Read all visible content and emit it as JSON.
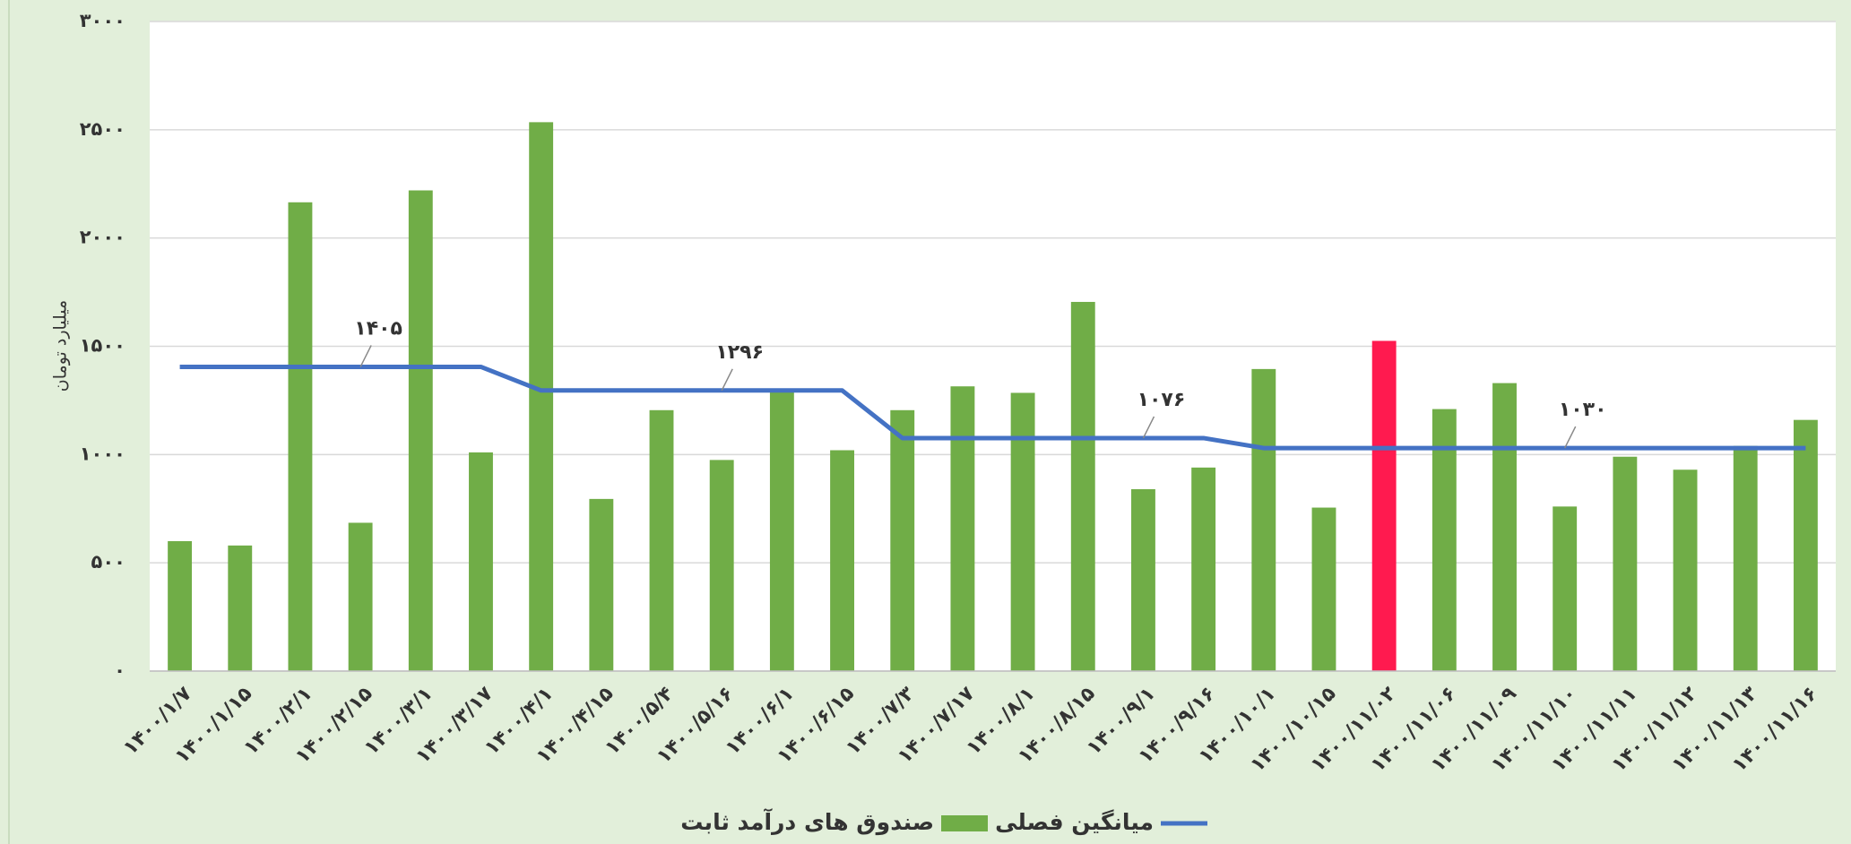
{
  "chart_data": {
    "type": "bar",
    "y_label": "میلیارد تومان",
    "categories": [
      "۱۴۰۰/۱/۷",
      "۱۴۰۰/۱/۱۵",
      "۱۴۰۰/۲/۱",
      "۱۴۰۰/۲/۱۵",
      "۱۴۰۰/۳/۱",
      "۱۴۰۰/۳/۱۷",
      "۱۴۰۰/۴/۱",
      "۱۴۰۰/۴/۱۵",
      "۱۴۰۰/۵/۴",
      "۱۴۰۰/۵/۱۶",
      "۱۴۰۰/۶/۱",
      "۱۴۰۰/۶/۱۵",
      "۱۴۰۰/۷/۳",
      "۱۴۰۰/۷/۱۷",
      "۱۴۰۰/۸/۱",
      "۱۴۰۰/۸/۱۵",
      "۱۴۰۰/۹/۱",
      "۱۴۰۰/۹/۱۶",
      "۱۴۰۰/۱۰/۱",
      "۱۴۰۰/۱۰/۱۵",
      "۱۴۰۰/۱۱/۰۲",
      "۱۴۰۰/۱۱/۰۶",
      "۱۴۰۰/۱۱/۰۹",
      "۱۴۰۰/۱۱/۱۰",
      "۱۴۰۰/۱۱/۱۱",
      "۱۴۰۰/۱۱/۱۲",
      "۱۴۰۰/۱۱/۱۳",
      "۱۴۰۰/۱۱/۱۶"
    ],
    "series": [
      {
        "name": "صندوق های درآمد ثابت",
        "type": "bar",
        "color": "#70ad47",
        "colors": [
          "#70ad47",
          "#70ad47",
          "#70ad47",
          "#70ad47",
          "#70ad47",
          "#70ad47",
          "#70ad47",
          "#70ad47",
          "#70ad47",
          "#70ad47",
          "#70ad47",
          "#70ad47",
          "#70ad47",
          "#70ad47",
          "#70ad47",
          "#70ad47",
          "#70ad47",
          "#70ad47",
          "#70ad47",
          "#70ad47",
          "#ff1a4f",
          "#70ad47",
          "#70ad47",
          "#70ad47",
          "#70ad47",
          "#70ad47",
          "#70ad47",
          "#70ad47"
        ],
        "values": [
          600,
          580,
          2165,
          685,
          2220,
          1010,
          2535,
          795,
          1205,
          975,
          1300,
          1020,
          1205,
          1315,
          1285,
          1705,
          840,
          940,
          1395,
          755,
          1525,
          1210,
          1330,
          760,
          990,
          930,
          1040,
          1160
        ]
      },
      {
        "name": "میانگین فصلی",
        "type": "line",
        "color": "#4472c4",
        "values": [
          1405,
          1405,
          1405,
          1405,
          1405,
          1405,
          1296,
          1296,
          1296,
          1296,
          1296,
          1296,
          1076,
          1076,
          1076,
          1076,
          1076,
          1076,
          1030,
          1030,
          1030,
          1030,
          1030,
          1030,
          1030,
          1030,
          1030,
          1030
        ],
        "value_labels": [
          null,
          null,
          null,
          "۱۴۰۵",
          null,
          null,
          null,
          null,
          null,
          "۱۲۹۶",
          null,
          null,
          null,
          null,
          null,
          null,
          "۱۰۷۶",
          null,
          null,
          null,
          null,
          null,
          null,
          "۱۰۳۰",
          null,
          null,
          null,
          null
        ]
      }
    ],
    "ylim": [
      0,
      3000
    ],
    "yticks": [
      {
        "value": 0,
        "label": "۰"
      },
      {
        "value": 500,
        "label": "۵۰۰"
      },
      {
        "value": 1000,
        "label": "۱۰۰۰"
      },
      {
        "value": 1500,
        "label": "۱۵۰۰"
      },
      {
        "value": 2000,
        "label": "۲۰۰۰"
      },
      {
        "value": 2500,
        "label": "۲۵۰۰"
      },
      {
        "value": 3000,
        "label": "۳۰۰۰"
      }
    ],
    "grid": true,
    "legend": "bottom"
  }
}
